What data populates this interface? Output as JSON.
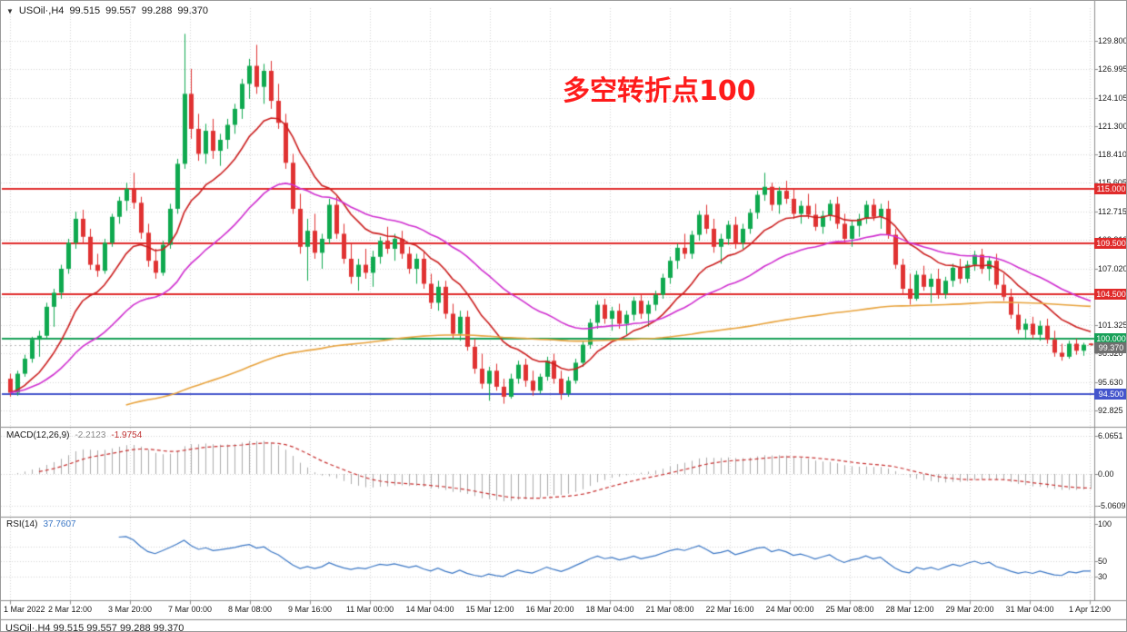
{
  "icons": {
    "collapse": "▼"
  },
  "annotation": {
    "text": "多空转折点100",
    "color": "#FE1B1B"
  },
  "bottom_partial": {
    "text": "USOil·,H4 99.515 99.557 99.288 99.370"
  },
  "chart_data": [
    {
      "type": "candlestick",
      "symbol": "USOil",
      "timeframe": "H4",
      "symbol_label": "USOil·,H4",
      "ohlc_readout": {
        "open": "99.515",
        "high": "99.557",
        "low": "99.288",
        "close": "99.370"
      },
      "up_color": "#0FA94F",
      "down_color": "#E03232",
      "grid_color": "#D6D6D6",
      "y_ticks": [
        129.8,
        126.995,
        124.105,
        121.3,
        118.41,
        115.605,
        112.715,
        109.91,
        107.02,
        104.215,
        101.325,
        98.52,
        95.63,
        92.825
      ],
      "x_labels": [
        "1 Mar 2022",
        "2 Mar 12:00",
        "3 Mar 20:00",
        "7 Mar 00:00",
        "8 Mar 08:00",
        "9 Mar 16:00",
        "11 Mar 00:00",
        "14 Mar 04:00",
        "15 Mar 12:00",
        "16 Mar 20:00",
        "18 Mar 04:00",
        "21 Mar 08:00",
        "22 Mar 16:00",
        "24 Mar 00:00",
        "25 Mar 08:00",
        "28 Mar 12:00",
        "29 Mar 20:00",
        "31 Mar 04:00",
        "1 Apr 12:00"
      ],
      "levels": [
        {
          "price": 115.0,
          "label": "115.000",
          "color": "#E02B2B"
        },
        {
          "price": 109.5,
          "label": "109.500",
          "color": "#E02B2B"
        },
        {
          "price": 104.5,
          "label": "104.500",
          "color": "#E02B2B"
        },
        {
          "price": 100.0,
          "label": "100.000",
          "color": "#18A058"
        },
        {
          "price": 94.5,
          "label": "94.500",
          "color": "#4455CC"
        }
      ],
      "current_price": {
        "value": 99.37,
        "label": "99.370",
        "badge_color": "#6F6F6F"
      },
      "ma_lines": [
        {
          "name": "ma-fast",
          "color": "#CC2020"
        },
        {
          "name": "ma-medium",
          "color": "#D02FD0"
        },
        {
          "name": "ma-slow",
          "color": "#E8A33D"
        }
      ],
      "candles": [
        [
          96.0,
          96.5,
          94.2,
          94.6
        ],
        [
          94.6,
          96.8,
          94.3,
          96.5
        ],
        [
          96.5,
          98.4,
          96.2,
          98.0
        ],
        [
          98.0,
          100.2,
          97.6,
          99.9
        ],
        [
          99.9,
          100.8,
          98.2,
          100.3
        ],
        [
          100.3,
          103.6,
          100.0,
          103.2
        ],
        [
          103.2,
          105.0,
          101.2,
          104.6
        ],
        [
          104.6,
          107.4,
          104.0,
          107.0
        ],
        [
          107.0,
          110.0,
          106.5,
          109.6
        ],
        [
          109.6,
          112.7,
          109.0,
          112.0
        ],
        [
          112.0,
          112.9,
          109.5,
          110.2
        ],
        [
          110.2,
          111.0,
          106.9,
          107.4
        ],
        [
          107.4,
          108.5,
          106.2,
          106.8
        ],
        [
          106.8,
          110.0,
          106.5,
          109.6
        ],
        [
          109.6,
          112.5,
          109.2,
          112.2
        ],
        [
          112.2,
          114.2,
          111.5,
          113.8
        ],
        [
          113.8,
          115.6,
          112.8,
          115.0
        ],
        [
          115.0,
          116.6,
          113.0,
          113.6
        ],
        [
          113.6,
          114.2,
          110.0,
          110.6
        ],
        [
          110.6,
          111.5,
          107.2,
          107.8
        ],
        [
          107.8,
          109.0,
          106.0,
          106.6
        ],
        [
          106.6,
          109.8,
          106.3,
          109.4
        ],
        [
          109.4,
          113.5,
          109.0,
          113.0
        ],
        [
          113.0,
          118.0,
          112.5,
          117.5
        ],
        [
          117.5,
          130.5,
          117.0,
          124.5
        ],
        [
          124.5,
          127.0,
          120.0,
          121.0
        ],
        [
          121.0,
          122.5,
          117.8,
          118.5
        ],
        [
          118.5,
          121.5,
          117.5,
          120.8
        ],
        [
          120.8,
          122.0,
          118.0,
          118.8
        ],
        [
          118.8,
          120.5,
          117.3,
          119.9
        ],
        [
          119.9,
          122.0,
          119.0,
          121.4
        ],
        [
          121.4,
          123.5,
          120.5,
          123.0
        ],
        [
          123.0,
          126.0,
          122.0,
          125.5
        ],
        [
          125.5,
          128.0,
          124.0,
          127.3
        ],
        [
          127.3,
          129.4,
          124.5,
          125.2
        ],
        [
          125.2,
          127.5,
          123.5,
          126.8
        ],
        [
          126.8,
          127.8,
          123.0,
          123.8
        ],
        [
          123.8,
          125.5,
          121.0,
          121.6
        ],
        [
          121.6,
          122.5,
          117.0,
          117.6
        ],
        [
          117.6,
          118.5,
          112.5,
          113.0
        ],
        [
          113.0,
          114.5,
          108.5,
          109.2
        ],
        [
          109.2,
          112.0,
          105.8,
          110.8
        ],
        [
          110.8,
          112.5,
          108.0,
          108.6
        ],
        [
          108.6,
          110.5,
          107.0,
          110.0
        ],
        [
          110.0,
          114.0,
          109.5,
          113.4
        ],
        [
          113.4,
          114.2,
          110.0,
          110.5
        ],
        [
          110.5,
          111.5,
          107.5,
          108.0
        ],
        [
          108.0,
          109.5,
          105.5,
          106.2
        ],
        [
          106.2,
          108.0,
          104.8,
          107.4
        ],
        [
          107.4,
          109.0,
          106.0,
          106.6
        ],
        [
          106.6,
          108.8,
          105.2,
          108.2
        ],
        [
          108.2,
          110.2,
          107.5,
          109.8
        ],
        [
          109.8,
          111.2,
          108.5,
          109.0
        ],
        [
          109.0,
          110.5,
          107.8,
          110.0
        ],
        [
          110.0,
          110.8,
          108.0,
          108.5
        ],
        [
          108.5,
          109.2,
          106.5,
          107.0
        ],
        [
          107.0,
          108.5,
          105.5,
          108.0
        ],
        [
          108.0,
          108.8,
          105.0,
          105.5
        ],
        [
          105.5,
          106.5,
          103.0,
          103.6
        ],
        [
          103.6,
          105.8,
          102.8,
          105.2
        ],
        [
          105.2,
          105.8,
          102.0,
          102.5
        ],
        [
          102.5,
          103.5,
          100.0,
          100.5
        ],
        [
          100.5,
          102.8,
          99.8,
          102.2
        ],
        [
          102.2,
          102.8,
          98.8,
          99.2
        ],
        [
          99.2,
          100.0,
          96.5,
          97.0
        ],
        [
          97.0,
          98.5,
          95.0,
          95.5
        ],
        [
          95.5,
          97.2,
          93.8,
          96.8
        ],
        [
          96.8,
          97.5,
          94.8,
          95.2
        ],
        [
          95.2,
          96.0,
          93.5,
          94.2
        ],
        [
          94.2,
          96.5,
          94.0,
          96.0
        ],
        [
          96.0,
          97.8,
          95.5,
          97.4
        ],
        [
          97.4,
          98.0,
          95.2,
          95.8
        ],
        [
          95.8,
          96.8,
          94.3,
          94.8
        ],
        [
          94.8,
          96.5,
          94.5,
          96.2
        ],
        [
          96.2,
          98.2,
          95.8,
          97.8
        ],
        [
          97.8,
          98.5,
          95.5,
          96.0
        ],
        [
          96.0,
          96.8,
          93.9,
          94.5
        ],
        [
          94.5,
          96.2,
          94.2,
          95.8
        ],
        [
          95.8,
          98.0,
          95.5,
          97.6
        ],
        [
          97.6,
          99.8,
          97.2,
          99.4
        ],
        [
          99.4,
          102.0,
          99.0,
          101.6
        ],
        [
          101.6,
          103.8,
          101.0,
          103.4
        ],
        [
          103.4,
          104.0,
          101.5,
          102.0
        ],
        [
          102.0,
          103.2,
          100.8,
          102.8
        ],
        [
          102.8,
          103.5,
          101.0,
          101.5
        ],
        [
          101.5,
          102.8,
          100.4,
          102.4
        ],
        [
          102.4,
          104.2,
          101.8,
          103.8
        ],
        [
          103.8,
          104.5,
          102.0,
          102.5
        ],
        [
          102.5,
          103.8,
          101.2,
          103.4
        ],
        [
          103.4,
          104.8,
          102.8,
          104.4
        ],
        [
          104.4,
          106.5,
          104.0,
          106.1
        ],
        [
          106.1,
          108.2,
          105.5,
          107.8
        ],
        [
          107.8,
          109.5,
          107.0,
          109.1
        ],
        [
          109.1,
          110.5,
          108.0,
          108.5
        ],
        [
          108.5,
          110.8,
          108.0,
          110.4
        ],
        [
          110.4,
          112.8,
          109.8,
          112.4
        ],
        [
          112.4,
          113.4,
          110.5,
          111.0
        ],
        [
          111.0,
          112.0,
          108.6,
          109.2
        ],
        [
          109.2,
          110.5,
          107.5,
          110.0
        ],
        [
          110.0,
          111.8,
          109.4,
          111.4
        ],
        [
          111.4,
          112.2,
          109.0,
          109.6
        ],
        [
          109.6,
          111.5,
          109.0,
          111.0
        ],
        [
          111.0,
          113.0,
          110.5,
          112.6
        ],
        [
          112.6,
          114.8,
          112.0,
          114.4
        ],
        [
          114.4,
          116.6,
          113.8,
          115.2
        ],
        [
          115.2,
          115.6,
          112.8,
          113.4
        ],
        [
          113.4,
          115.2,
          112.5,
          114.8
        ],
        [
          114.8,
          115.8,
          113.5,
          114.0
        ],
        [
          114.0,
          115.0,
          112.0,
          112.5
        ],
        [
          112.5,
          113.8,
          111.5,
          113.3
        ],
        [
          113.3,
          114.5,
          112.0,
          112.4
        ],
        [
          112.4,
          113.5,
          110.8,
          111.2
        ],
        [
          111.2,
          112.8,
          110.5,
          112.3
        ],
        [
          112.3,
          113.9,
          111.8,
          113.5
        ],
        [
          113.5,
          114.2,
          111.0,
          111.5
        ],
        [
          111.5,
          112.5,
          109.5,
          110.0
        ],
        [
          110.0,
          111.8,
          109.2,
          111.3
        ],
        [
          111.3,
          112.5,
          110.2,
          112.0
        ],
        [
          112.0,
          113.8,
          111.5,
          113.4
        ],
        [
          113.4,
          114.0,
          111.8,
          112.2
        ],
        [
          112.2,
          113.5,
          111.0,
          113.0
        ],
        [
          113.0,
          113.8,
          110.0,
          110.4
        ],
        [
          110.4,
          111.0,
          107.0,
          107.4
        ],
        [
          107.4,
          108.0,
          104.5,
          105.0
        ],
        [
          105.0,
          106.5,
          103.4,
          104.0
        ],
        [
          104.0,
          106.8,
          103.8,
          106.4
        ],
        [
          106.4,
          107.3,
          104.8,
          105.2
        ],
        [
          105.2,
          106.5,
          103.6,
          106.0
        ],
        [
          106.0,
          107.0,
          104.0,
          104.5
        ],
        [
          104.5,
          106.2,
          104.0,
          105.8
        ],
        [
          105.8,
          107.5,
          105.2,
          107.1
        ],
        [
          107.1,
          108.0,
          105.5,
          106.0
        ],
        [
          106.0,
          107.8,
          105.6,
          107.4
        ],
        [
          107.4,
          108.8,
          106.8,
          108.4
        ],
        [
          108.4,
          109.0,
          106.5,
          107.0
        ],
        [
          107.0,
          108.2,
          105.8,
          107.8
        ],
        [
          107.8,
          108.5,
          105.0,
          105.4
        ],
        [
          105.4,
          106.5,
          103.8,
          104.2
        ],
        [
          104.2,
          105.0,
          102.0,
          102.4
        ],
        [
          102.4,
          103.5,
          100.5,
          100.9
        ],
        [
          100.9,
          102.0,
          99.9,
          101.5
        ],
        [
          101.5,
          102.2,
          100.0,
          100.4
        ],
        [
          100.4,
          101.8,
          99.8,
          101.3
        ],
        [
          101.3,
          102.0,
          99.5,
          99.9
        ],
        [
          99.9,
          100.8,
          98.2,
          98.6
        ],
        [
          98.6,
          99.5,
          97.8,
          98.2
        ],
        [
          98.2,
          99.8,
          98.0,
          99.5
        ],
        [
          99.5,
          100.0,
          98.4,
          98.8
        ],
        [
          98.8,
          99.6,
          98.3,
          99.4
        ],
        [
          99.52,
          99.56,
          99.29,
          99.37
        ]
      ]
    },
    {
      "type": "macd",
      "label": "MACD(12,26,9)",
      "value_main": "-2.2123",
      "value_signal": "-1.9754",
      "params": {
        "fast": 12,
        "slow": 26,
        "signal": 9
      },
      "y_ticks": [
        {
          "v": 6.0651,
          "label": "6.0651"
        },
        {
          "v": 0,
          "label": "0.00"
        },
        {
          "v": -5.0609,
          "label": "-5.0609"
        }
      ],
      "histogram_color": "#ABABAB",
      "signal_color": "#C83232"
    },
    {
      "type": "rsi",
      "label": "RSI(14)",
      "value": "37.7607",
      "period": 14,
      "levels": [
        70,
        50,
        30
      ],
      "y_ticks": [
        {
          "v": 100,
          "label": "100"
        },
        {
          "v": 50,
          "label": "50"
        },
        {
          "v": 30,
          "label": "30"
        }
      ],
      "line_color": "#3B77C5"
    }
  ]
}
